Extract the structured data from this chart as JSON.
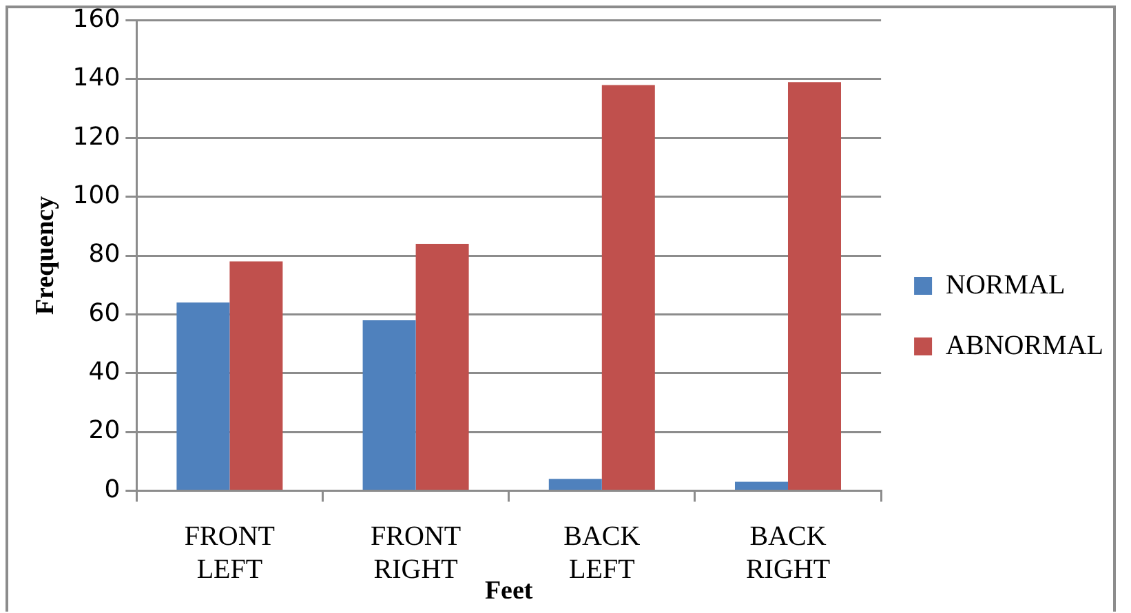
{
  "chart_data": {
    "type": "bar",
    "xlabel": "Feet",
    "ylabel": "Frequency",
    "categories": [
      "FRONT LEFT",
      "FRONT RIGHT",
      "BACK LEFT",
      "BACK RIGHT"
    ],
    "series": [
      {
        "name": "NORMAL",
        "color": "#4f81bd",
        "values": [
          64,
          58,
          4,
          3
        ]
      },
      {
        "name": "ABNORMAL",
        "color": "#c0504d",
        "values": [
          78,
          84,
          138,
          139
        ]
      }
    ],
    "ylim": [
      0,
      160
    ],
    "yticks": [
      0,
      20,
      40,
      60,
      80,
      100,
      120,
      140,
      160
    ],
    "grid": "y",
    "legend": "right"
  }
}
